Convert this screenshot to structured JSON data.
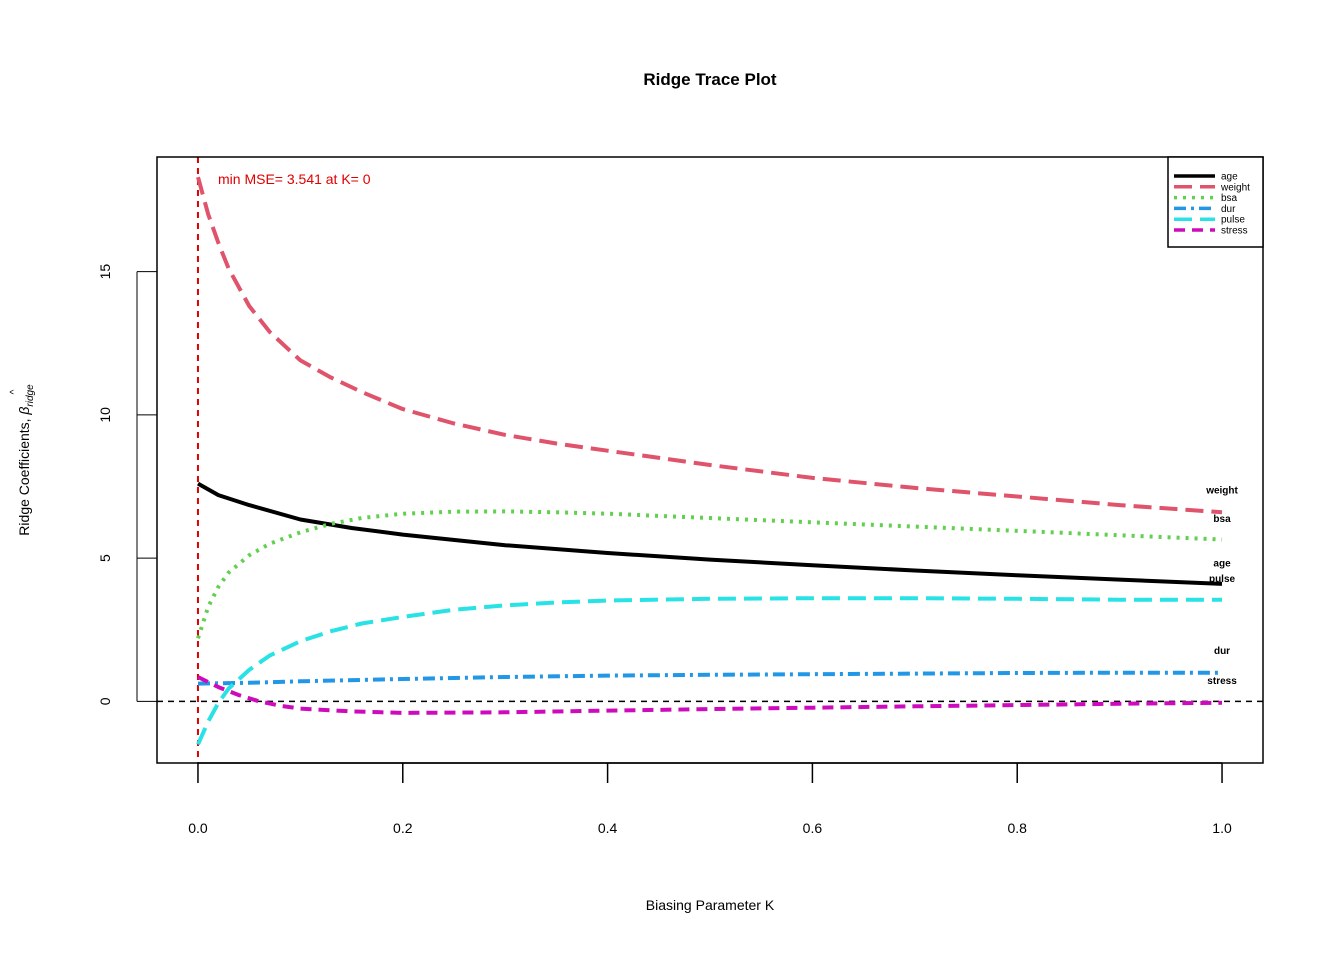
{
  "chart_data": {
    "type": "line",
    "title": "Ridge Trace Plot",
    "xlabel": "Biasing Parameter K",
    "ylabel_main": "Ridge Coefficients, ",
    "ylabel_symbol": "β",
    "ylabel_hat": "^",
    "ylabel_sub": "ridge",
    "xlim": [
      -0.04,
      1.04
    ],
    "ylim": [
      -2.15,
      19.0
    ],
    "xticks": [
      0.0,
      0.2,
      0.4,
      0.6,
      0.8,
      1.0
    ],
    "xtick_labels": [
      "0.0",
      "0.2",
      "0.4",
      "0.6",
      "0.8",
      "1.0"
    ],
    "yticks": [
      0,
      5,
      10,
      15
    ],
    "ytick_labels": [
      "0",
      "5",
      "10",
      "15"
    ],
    "annotation": "min MSE= 3.541 at K= 0",
    "annotation_color": "#DF0000",
    "min_mse_k": 0,
    "reference_line_y": 0,
    "legend_position": "top-right",
    "series": [
      {
        "name": "age",
        "color": "#000000",
        "dash": "solid",
        "x": [
          0,
          0.02,
          0.05,
          0.1,
          0.15,
          0.2,
          0.3,
          0.4,
          0.5,
          0.6,
          0.7,
          0.8,
          0.9,
          1.0
        ],
        "y": [
          7.6,
          7.2,
          6.85,
          6.35,
          6.05,
          5.82,
          5.45,
          5.18,
          4.95,
          4.75,
          4.57,
          4.4,
          4.25,
          4.1
        ]
      },
      {
        "name": "weight",
        "color": "#DF536B",
        "dash": "long-dash",
        "x": [
          0,
          0.01,
          0.02,
          0.03,
          0.05,
          0.07,
          0.1,
          0.13,
          0.16,
          0.2,
          0.25,
          0.3,
          0.35,
          0.4,
          0.5,
          0.6,
          0.7,
          0.8,
          0.9,
          1.0
        ],
        "y": [
          18.3,
          17.0,
          16.0,
          15.1,
          13.8,
          12.9,
          11.9,
          11.3,
          10.8,
          10.2,
          9.7,
          9.3,
          9.0,
          8.75,
          8.25,
          7.8,
          7.45,
          7.15,
          6.85,
          6.6
        ]
      },
      {
        "name": "bsa",
        "color": "#61D04F",
        "dash": "dotted",
        "x": [
          0,
          0.01,
          0.02,
          0.03,
          0.05,
          0.07,
          0.1,
          0.13,
          0.16,
          0.2,
          0.25,
          0.3,
          0.35,
          0.4,
          0.5,
          0.6,
          0.7,
          0.8,
          0.9,
          1.0
        ],
        "y": [
          2.2,
          3.3,
          4.0,
          4.5,
          5.1,
          5.5,
          5.9,
          6.2,
          6.4,
          6.55,
          6.62,
          6.63,
          6.6,
          6.55,
          6.4,
          6.25,
          6.1,
          5.95,
          5.8,
          5.65
        ]
      },
      {
        "name": "dur",
        "color": "#2297E6",
        "dash": "dash-dot",
        "x": [
          0,
          0.05,
          0.1,
          0.2,
          0.3,
          0.4,
          0.5,
          0.6,
          0.7,
          0.8,
          0.9,
          1.0
        ],
        "y": [
          0.62,
          0.65,
          0.7,
          0.78,
          0.85,
          0.9,
          0.93,
          0.95,
          0.97,
          0.99,
          1.0,
          1.0
        ]
      },
      {
        "name": "pulse",
        "color": "#28E2E5",
        "dash": "long-dash",
        "x": [
          0,
          0.01,
          0.02,
          0.03,
          0.05,
          0.07,
          0.1,
          0.13,
          0.16,
          0.2,
          0.25,
          0.3,
          0.35,
          0.4,
          0.5,
          0.6,
          0.7,
          0.8,
          0.9,
          1.0
        ],
        "y": [
          -1.5,
          -0.7,
          -0.05,
          0.45,
          1.1,
          1.6,
          2.1,
          2.45,
          2.72,
          2.95,
          3.2,
          3.35,
          3.45,
          3.52,
          3.58,
          3.6,
          3.6,
          3.58,
          3.55,
          3.55
        ]
      },
      {
        "name": "stress",
        "color": "#CD0BBC",
        "dash": "dash",
        "x": [
          0,
          0.02,
          0.04,
          0.06,
          0.08,
          0.1,
          0.15,
          0.2,
          0.3,
          0.4,
          0.5,
          0.6,
          0.7,
          0.8,
          0.9,
          1.0
        ],
        "y": [
          0.85,
          0.5,
          0.22,
          0.0,
          -0.15,
          -0.25,
          -0.35,
          -0.4,
          -0.38,
          -0.32,
          -0.27,
          -0.22,
          -0.17,
          -0.13,
          -0.08,
          -0.05
        ]
      }
    ],
    "end_labels": [
      "weight",
      "bsa",
      "age",
      "pulse",
      "dur",
      "stress"
    ],
    "end_label_values": [
      7.4,
      6.4,
      4.85,
      4.3,
      1.8,
      0.75
    ]
  }
}
